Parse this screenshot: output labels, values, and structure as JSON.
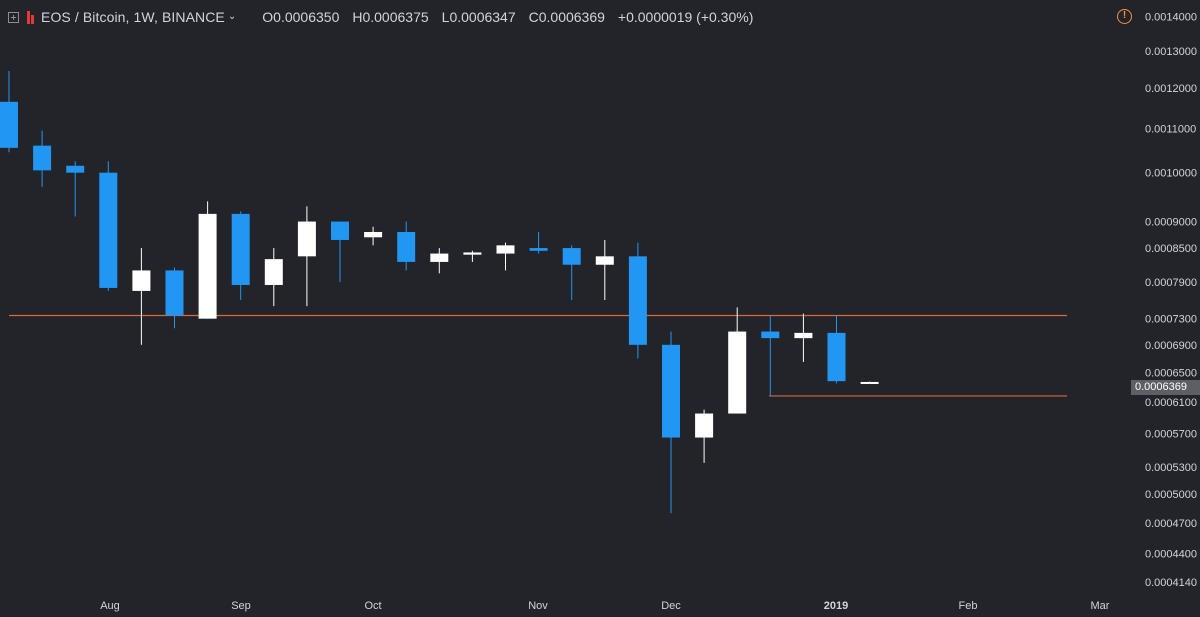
{
  "header": {
    "symbol": "EOS / Bitcoin, 1W, BINANCE",
    "open": "O0.0006350",
    "high": "H0.0006375",
    "low": "L0.0006347",
    "close": "C0.0006369",
    "change": "+0.0000019 (+0.30%)",
    "warning_glyph": "!"
  },
  "colors": {
    "background": "#232429",
    "up": "#ffffff",
    "down": "#2196f3",
    "level": "#d9683a",
    "axis_text": "#d1d4dc",
    "warning": "#f7923a",
    "price_pill": "#5d5f66"
  },
  "chart_data": {
    "type": "candlestick",
    "interval": "1W",
    "price_scale": "log",
    "ylim": [
      0.000405,
      0.00142
    ],
    "y_ticks": [
      "0.0014000",
      "0.0013000",
      "0.0012000",
      "0.0011000",
      "0.0010000",
      "0.0009000",
      "0.0008500",
      "0.0007900",
      "0.0007300",
      "0.0006900",
      "0.0006500",
      "0.0006100",
      "0.0005700",
      "0.0005300",
      "0.0005000",
      "0.0004700",
      "0.0004400",
      "0.0004140"
    ],
    "x_ticks": [
      "Aug",
      "Sep",
      "Oct",
      "Nov",
      "Dec",
      "2019",
      "Feb",
      "Mar"
    ],
    "last_price_label": "0.0006369",
    "horizontal_levels": [
      0.000735,
      0.000618
    ],
    "candles": [
      {
        "o": 0.001165,
        "h": 0.001245,
        "l": 0.001045,
        "c": 0.001055
      },
      {
        "o": 0.00106,
        "h": 0.001095,
        "l": 0.00097,
        "c": 0.001005
      },
      {
        "o": 0.001015,
        "h": 0.001025,
        "l": 0.00091,
        "c": 0.001
      },
      {
        "o": 0.001,
        "h": 0.001025,
        "l": 0.000775,
        "c": 0.00078
      },
      {
        "o": 0.000775,
        "h": 0.00085,
        "l": 0.00069,
        "c": 0.00081
      },
      {
        "o": 0.00081,
        "h": 0.000815,
        "l": 0.000715,
        "c": 0.000735
      },
      {
        "o": 0.00073,
        "h": 0.00094,
        "l": 0.00073,
        "c": 0.000915
      },
      {
        "o": 0.000915,
        "h": 0.00092,
        "l": 0.00076,
        "c": 0.000785
      },
      {
        "o": 0.000785,
        "h": 0.00085,
        "l": 0.00075,
        "c": 0.00083
      },
      {
        "o": 0.000835,
        "h": 0.00093,
        "l": 0.00075,
        "c": 0.0009
      },
      {
        "o": 0.0009,
        "h": 0.0009,
        "l": 0.00079,
        "c": 0.000865
      },
      {
        "o": 0.00087,
        "h": 0.00089,
        "l": 0.000855,
        "c": 0.00088
      },
      {
        "o": 0.00088,
        "h": 0.0009,
        "l": 0.00081,
        "c": 0.000825
      },
      {
        "o": 0.000825,
        "h": 0.00085,
        "l": 0.000805,
        "c": 0.00084
      },
      {
        "o": 0.000838,
        "h": 0.000845,
        "l": 0.000825,
        "c": 0.000842
      },
      {
        "o": 0.00084,
        "h": 0.00086,
        "l": 0.00081,
        "c": 0.000855
      },
      {
        "o": 0.00085,
        "h": 0.00088,
        "l": 0.00084,
        "c": 0.000845
      },
      {
        "o": 0.00085,
        "h": 0.000855,
        "l": 0.00076,
        "c": 0.00082
      },
      {
        "o": 0.00082,
        "h": 0.000865,
        "l": 0.00076,
        "c": 0.000835
      },
      {
        "o": 0.000835,
        "h": 0.00086,
        "l": 0.00067,
        "c": 0.00069
      },
      {
        "o": 0.00069,
        "h": 0.00071,
        "l": 0.00048,
        "c": 0.000565
      },
      {
        "o": 0.000565,
        "h": 0.0006,
        "l": 0.000535,
        "c": 0.000595
      },
      {
        "o": 0.000595,
        "h": 0.000748,
        "l": 0.000595,
        "c": 0.00071
      },
      {
        "o": 0.00071,
        "h": 0.000735,
        "l": 0.000618,
        "c": 0.0007
      },
      {
        "o": 0.0007,
        "h": 0.000738,
        "l": 0.000665,
        "c": 0.000708
      },
      {
        "o": 0.000708,
        "h": 0.000735,
        "l": 0.000635,
        "c": 0.000638
      },
      {
        "o": 0.000635,
        "h": 0.0006375,
        "l": 0.0006347,
        "c": 0.0006369
      }
    ]
  }
}
